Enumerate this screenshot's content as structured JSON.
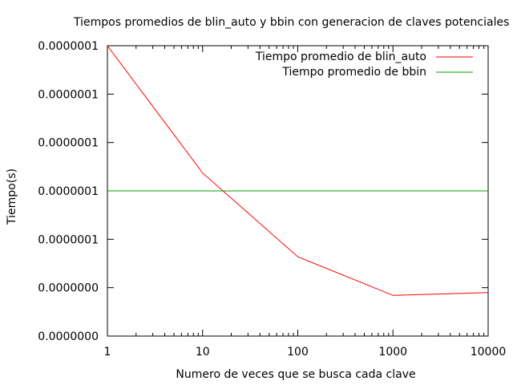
{
  "chart_data": {
    "type": "line",
    "title": "Tiempos promedios de blin_auto y bbin con generacion de claves potenciales",
    "xlabel": "Numero de veces que se busca cada clave",
    "ylabel": "Tiempo(s)",
    "x_scale": "log",
    "xlim": [
      1,
      10000
    ],
    "x_ticks": [
      1,
      10,
      100,
      1000,
      10000
    ],
    "x_tick_labels": [
      "1",
      "10",
      "100",
      "1000",
      "10000"
    ],
    "ylim": [
      0,
      6
    ],
    "y_ticks": [
      0,
      1,
      2,
      3,
      4,
      5,
      6
    ],
    "y_tick_labels": [
      "0.0000000",
      "0.0000000",
      "0.0000001",
      "0.0000001",
      "0.0000001",
      "0.0000001",
      "0.0000001"
    ],
    "legend_position": "top-right",
    "grid": false,
    "series": [
      {
        "name": "Tiempo promedio de blin_auto",
        "color": "#ff0000",
        "x": [
          1,
          10,
          100,
          1000,
          10000
        ],
        "y": [
          6.0,
          3.37,
          1.64,
          0.84,
          0.9
        ]
      },
      {
        "name": "Tiempo promedio de bbin",
        "color": "#00a000",
        "x": [
          1,
          10000
        ],
        "y": [
          3.0,
          3.0
        ]
      }
    ]
  }
}
